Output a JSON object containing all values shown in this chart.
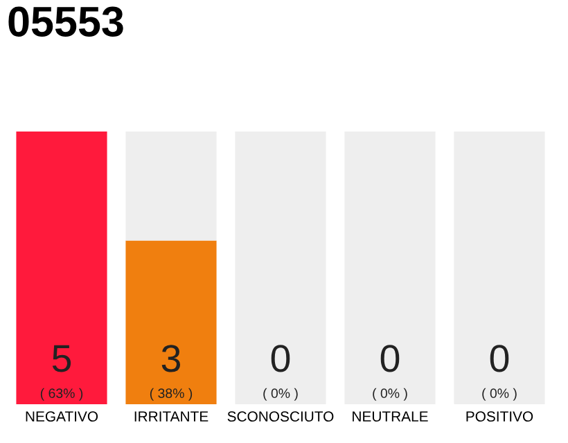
{
  "chart_data": {
    "type": "bar",
    "title": "05553",
    "categories": [
      "NEGATIVO",
      "IRRITANTE",
      "SCONOSCIUTO",
      "NEUTRALE",
      "POSITIVO"
    ],
    "stacked": true,
    "ylim": [
      0,
      5
    ],
    "tick_labels": "x",
    "grid": false,
    "series": [
      {
        "colors": [
          "#ff1a3c",
          "#f07f0f",
          "#eeeeee",
          "#eeeeee",
          "#eeeeee"
        ],
        "values": [
          5,
          3,
          0,
          0,
          0
        ],
        "value_labels": [
          "5",
          "3",
          null,
          null,
          null
        ]
      },
      {
        "color": "#eeeeee",
        "values": [
          0,
          2,
          5,
          5,
          5
        ]
      }
    ],
    "annotations": [
      "( 63% )",
      "( 38% )",
      "0",
      "( 0% )",
      "0",
      "( 0% )",
      "0",
      "( 0% )"
    ]
  }
}
